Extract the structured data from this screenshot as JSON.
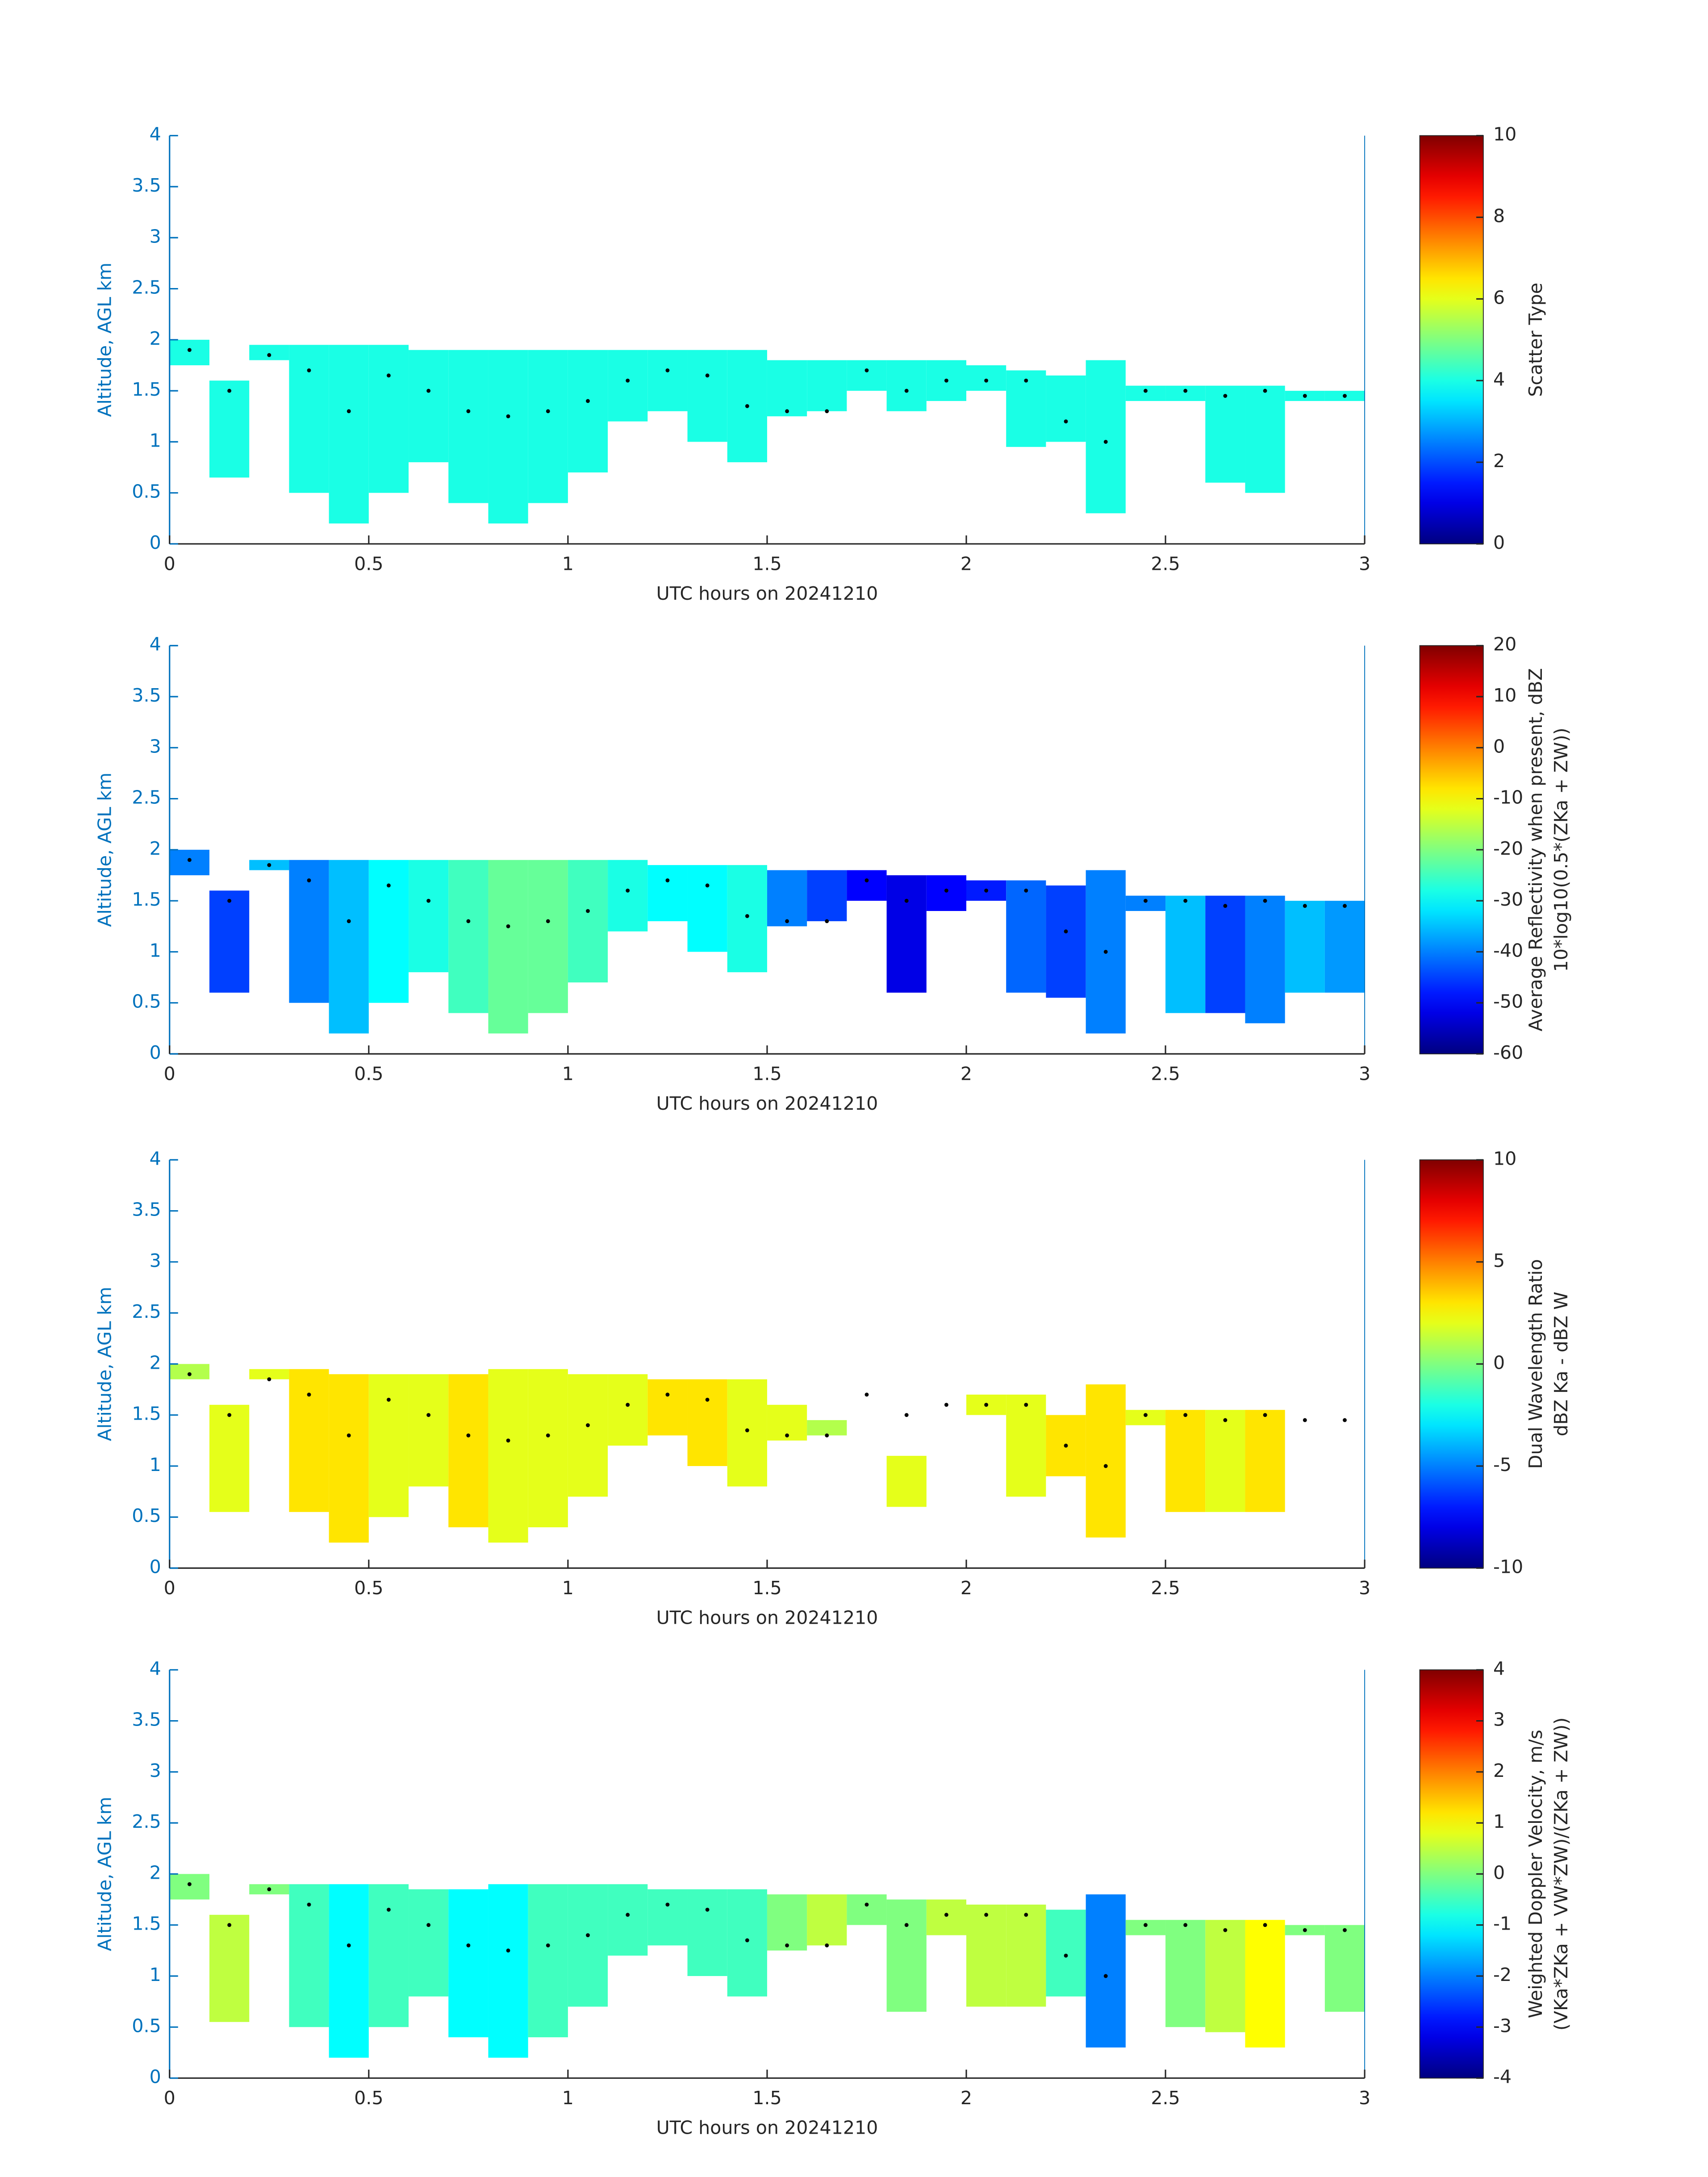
{
  "chart_data": [
    {
      "type": "heatmap",
      "colormap": "jet",
      "x_label": "UTC hours on 20241210",
      "y_label": "Altitude, AGL km",
      "colorbar_label": [
        "Scatter Type"
      ],
      "clim": [
        0,
        10
      ],
      "cticks": [
        0,
        2,
        4,
        6,
        8,
        10
      ],
      "xlim": [
        0,
        3
      ],
      "xticks": [
        0,
        0.5,
        1,
        1.5,
        2,
        2.5,
        3
      ],
      "ylim": [
        0,
        4
      ],
      "yticks": [
        0,
        0.5,
        1,
        1.5,
        2,
        2.5,
        3,
        3.5,
        4
      ],
      "x_edges": [
        0,
        0.1,
        0.2,
        0.3,
        0.4,
        0.5,
        0.6,
        0.7,
        0.8,
        0.9,
        1,
        1.1,
        1.2,
        1.3,
        1.4,
        1.5,
        1.6,
        1.7,
        1.8,
        1.9,
        2,
        2.1,
        2.2,
        2.3,
        2.4,
        2.5,
        2.6,
        2.7,
        2.8,
        2.9,
        3
      ],
      "tops": [
        2,
        1.6,
        1.95,
        1.95,
        1.95,
        1.95,
        1.9,
        1.9,
        1.9,
        1.9,
        1.9,
        1.9,
        1.9,
        1.9,
        1.9,
        1.8,
        1.8,
        1.8,
        1.8,
        1.8,
        1.75,
        1.7,
        1.65,
        1.8,
        1.55,
        1.55,
        1.55,
        1.55,
        1.5,
        1.5
      ],
      "bases": [
        1.75,
        0.65,
        1.8,
        0.5,
        0.2,
        0.5,
        0.8,
        0.4,
        0.2,
        0.4,
        0.7,
        1.2,
        1.3,
        1,
        0.8,
        1.25,
        1.3,
        1.5,
        1.3,
        1.4,
        1.5,
        0.95,
        1,
        0.3,
        1.4,
        1.4,
        0.6,
        0.5,
        1.4,
        1.4
      ],
      "values": [
        4,
        4,
        4,
        4,
        4,
        4,
        4,
        4,
        4,
        4,
        4,
        4,
        4,
        4,
        4,
        4,
        4,
        4,
        4,
        4,
        4,
        4,
        4,
        4,
        4,
        4,
        4,
        4,
        4,
        4
      ],
      "dots_x": [
        0.05,
        0.15,
        0.25,
        0.35,
        0.45,
        0.55,
        0.65,
        0.75,
        0.85,
        0.95,
        1.05,
        1.15,
        1.25,
        1.35,
        1.45,
        1.55,
        1.65,
        1.75,
        1.85,
        1.95,
        2.05,
        2.15,
        2.25,
        2.35,
        2.45,
        2.55,
        2.65,
        2.75,
        2.85,
        2.95
      ],
      "dots_y": [
        1.9,
        1.5,
        1.85,
        1.7,
        1.3,
        1.65,
        1.5,
        1.3,
        1.25,
        1.3,
        1.4,
        1.6,
        1.7,
        1.65,
        1.35,
        1.3,
        1.3,
        1.7,
        1.5,
        1.6,
        1.6,
        1.6,
        1.2,
        1,
        1.5,
        1.5,
        1.45,
        1.5,
        1.45,
        1.45
      ]
    },
    {
      "type": "heatmap",
      "colormap": "jet",
      "x_label": "UTC hours on 20241210",
      "y_label": "Altitude, AGL km",
      "colorbar_label": [
        "Average Reflectivity when present, dBZ",
        "10*log10(0.5*(ZKa + ZW))"
      ],
      "clim": [
        -60,
        20
      ],
      "cticks": [
        -60,
        -50,
        -40,
        -30,
        -20,
        -10,
        0,
        10,
        20
      ],
      "xlim": [
        0,
        3
      ],
      "xticks": [
        0,
        0.5,
        1,
        1.5,
        2,
        2.5,
        3
      ],
      "ylim": [
        0,
        4
      ],
      "yticks": [
        0,
        0.5,
        1,
        1.5,
        2,
        2.5,
        3,
        3.5,
        4
      ],
      "x_edges": [
        0,
        0.1,
        0.2,
        0.3,
        0.4,
        0.5,
        0.6,
        0.7,
        0.8,
        0.9,
        1,
        1.1,
        1.2,
        1.3,
        1.4,
        1.5,
        1.6,
        1.7,
        1.8,
        1.9,
        2,
        2.1,
        2.2,
        2.3,
        2.4,
        2.5,
        2.6,
        2.7,
        2.8,
        2.9,
        3
      ],
      "tops": [
        2,
        1.6,
        1.9,
        1.9,
        1.9,
        1.9,
        1.9,
        1.9,
        1.9,
        1.9,
        1.9,
        1.9,
        1.85,
        1.85,
        1.85,
        1.8,
        1.8,
        1.8,
        1.75,
        1.75,
        1.7,
        1.7,
        1.65,
        1.8,
        1.55,
        1.55,
        1.55,
        1.55,
        1.5,
        1.5
      ],
      "bases": [
        1.75,
        0.6,
        1.8,
        0.5,
        0.2,
        0.5,
        0.8,
        0.4,
        0.2,
        0.4,
        0.7,
        1.2,
        1.3,
        1,
        0.8,
        1.25,
        1.3,
        1.5,
        0.6,
        1.4,
        1.5,
        0.6,
        0.55,
        0.2,
        1.4,
        0.4,
        0.4,
        0.3,
        0.6,
        0.6
      ],
      "values": [
        -40,
        -45,
        -35,
        -40,
        -35,
        -30,
        -28,
        -25,
        -22,
        -22,
        -25,
        -28,
        -30,
        -30,
        -28,
        -40,
        -45,
        -50,
        -52,
        -50,
        -48,
        -42,
        -45,
        -40,
        -40,
        -35,
        -45,
        -40,
        -35,
        -38
      ],
      "dots_x": [
        0.05,
        0.15,
        0.25,
        0.35,
        0.45,
        0.55,
        0.65,
        0.75,
        0.85,
        0.95,
        1.05,
        1.15,
        1.25,
        1.35,
        1.45,
        1.55,
        1.65,
        1.75,
        1.85,
        1.95,
        2.05,
        2.15,
        2.25,
        2.35,
        2.45,
        2.55,
        2.65,
        2.75,
        2.85,
        2.95
      ],
      "dots_y": [
        1.9,
        1.5,
        1.85,
        1.7,
        1.3,
        1.65,
        1.5,
        1.3,
        1.25,
        1.3,
        1.4,
        1.6,
        1.7,
        1.65,
        1.35,
        1.3,
        1.3,
        1.7,
        1.5,
        1.6,
        1.6,
        1.6,
        1.2,
        1,
        1.5,
        1.5,
        1.45,
        1.5,
        1.45,
        1.45
      ]
    },
    {
      "type": "heatmap",
      "colormap": "jet",
      "x_label": "UTC hours on 20241210",
      "y_label": "Altitude, AGL km",
      "colorbar_label": [
        "Dual Wavelength Ratio",
        "dBZ Ka - dBZ W"
      ],
      "clim": [
        -10,
        10
      ],
      "cticks": [
        -10,
        -5,
        0,
        5,
        10
      ],
      "xlim": [
        0,
        3
      ],
      "xticks": [
        0,
        0.5,
        1,
        1.5,
        2,
        2.5,
        3
      ],
      "ylim": [
        0,
        4
      ],
      "yticks": [
        0,
        0.5,
        1,
        1.5,
        2,
        2.5,
        3,
        3.5,
        4
      ],
      "x_edges": [
        0,
        0.1,
        0.2,
        0.3,
        0.4,
        0.5,
        0.6,
        0.7,
        0.8,
        0.9,
        1,
        1.1,
        1.2,
        1.3,
        1.4,
        1.5,
        1.6,
        1.7,
        1.8,
        1.9,
        2,
        2.1,
        2.2,
        2.3,
        2.4,
        2.5,
        2.6,
        2.7,
        2.8,
        2.9,
        3
      ],
      "tops": [
        2,
        1.6,
        1.95,
        1.95,
        1.9,
        1.9,
        1.9,
        1.9,
        1.95,
        1.95,
        1.9,
        1.9,
        1.85,
        1.85,
        1.85,
        1.6,
        1.45,
        null,
        1.1,
        null,
        1.7,
        1.7,
        1.5,
        1.8,
        1.55,
        1.55,
        1.55,
        1.55,
        null,
        null
      ],
      "bases": [
        1.85,
        0.55,
        1.85,
        0.55,
        0.25,
        0.5,
        0.8,
        0.4,
        0.25,
        0.4,
        0.7,
        1.2,
        1.3,
        1,
        0.8,
        1.25,
        1.3,
        null,
        0.6,
        null,
        1.5,
        0.7,
        0.9,
        0.3,
        1.4,
        0.55,
        0.55,
        0.55,
        null,
        null
      ],
      "values": [
        1,
        2,
        2,
        3,
        3,
        2,
        2,
        3,
        2,
        2,
        2,
        2,
        3,
        3,
        2,
        2,
        1,
        null,
        2,
        null,
        2,
        2,
        3,
        3,
        2,
        3,
        2,
        3,
        null,
        null
      ],
      "dots_x": [
        0.05,
        0.15,
        0.25,
        0.35,
        0.45,
        0.55,
        0.65,
        0.75,
        0.85,
        0.95,
        1.05,
        1.15,
        1.25,
        1.35,
        1.45,
        1.55,
        1.65,
        1.75,
        1.85,
        1.95,
        2.05,
        2.15,
        2.25,
        2.35,
        2.45,
        2.55,
        2.65,
        2.75,
        2.85,
        2.95
      ],
      "dots_y": [
        1.9,
        1.5,
        1.85,
        1.7,
        1.3,
        1.65,
        1.5,
        1.3,
        1.25,
        1.3,
        1.4,
        1.6,
        1.7,
        1.65,
        1.35,
        1.3,
        1.3,
        1.7,
        1.5,
        1.6,
        1.6,
        1.6,
        1.2,
        1,
        1.5,
        1.5,
        1.45,
        1.5,
        1.45,
        1.45
      ]
    },
    {
      "type": "heatmap",
      "colormap": "jet",
      "x_label": "UTC hours on 20241210",
      "y_label": "Altitude, AGL km",
      "colorbar_label": [
        "Weighted Doppler Velocity, m/s",
        "(VKa*ZKa + VW*ZW)/(ZKa + ZW))"
      ],
      "clim": [
        -4,
        4
      ],
      "cticks": [
        -4,
        -3,
        -2,
        -1,
        0,
        1,
        2,
        3,
        4
      ],
      "xlim": [
        0,
        3
      ],
      "xticks": [
        0,
        0.5,
        1,
        1.5,
        2,
        2.5,
        3
      ],
      "ylim": [
        0,
        4
      ],
      "yticks": [
        0,
        0.5,
        1,
        1.5,
        2,
        2.5,
        3,
        3.5,
        4
      ],
      "x_edges": [
        0,
        0.1,
        0.2,
        0.3,
        0.4,
        0.5,
        0.6,
        0.7,
        0.8,
        0.9,
        1,
        1.1,
        1.2,
        1.3,
        1.4,
        1.5,
        1.6,
        1.7,
        1.8,
        1.9,
        2,
        2.1,
        2.2,
        2.3,
        2.4,
        2.5,
        2.6,
        2.7,
        2.8,
        2.9,
        3
      ],
      "tops": [
        2,
        1.6,
        1.9,
        1.9,
        1.9,
        1.9,
        1.85,
        1.85,
        1.9,
        1.9,
        1.9,
        1.9,
        1.85,
        1.85,
        1.85,
        1.8,
        1.8,
        1.8,
        1.75,
        1.75,
        1.7,
        1.7,
        1.65,
        1.8,
        1.55,
        1.55,
        1.55,
        1.55,
        1.5,
        1.5
      ],
      "bases": [
        1.75,
        0.55,
        1.8,
        0.5,
        0.2,
        0.5,
        0.8,
        0.4,
        0.2,
        0.4,
        0.7,
        1.2,
        1.3,
        1,
        0.8,
        1.25,
        1.3,
        1.5,
        0.65,
        1.4,
        0.7,
        0.7,
        0.8,
        0.3,
        1.4,
        0.5,
        0.45,
        0.3,
        1.4,
        0.65
      ],
      "values": [
        0,
        0.5,
        0,
        -0.5,
        -1,
        -0.5,
        -0.5,
        -1,
        -1,
        -0.5,
        -0.5,
        -0.5,
        -0.5,
        -0.5,
        -0.5,
        0,
        0.5,
        0,
        0,
        0.5,
        0.5,
        0.5,
        -0.5,
        -2,
        0,
        0,
        0.5,
        1,
        0,
        0
      ],
      "dots_x": [
        0.05,
        0.15,
        0.25,
        0.35,
        0.45,
        0.55,
        0.65,
        0.75,
        0.85,
        0.95,
        1.05,
        1.15,
        1.25,
        1.35,
        1.45,
        1.55,
        1.65,
        1.75,
        1.85,
        1.95,
        2.05,
        2.15,
        2.25,
        2.35,
        2.45,
        2.55,
        2.65,
        2.75,
        2.85,
        2.95
      ],
      "dots_y": [
        1.9,
        1.5,
        1.85,
        1.7,
        1.3,
        1.65,
        1.5,
        1.3,
        1.25,
        1.3,
        1.4,
        1.6,
        1.7,
        1.65,
        1.35,
        1.3,
        1.3,
        1.7,
        1.5,
        1.6,
        1.6,
        1.6,
        1.2,
        1,
        1.5,
        1.5,
        1.45,
        1.5,
        1.45,
        1.45
      ]
    }
  ]
}
